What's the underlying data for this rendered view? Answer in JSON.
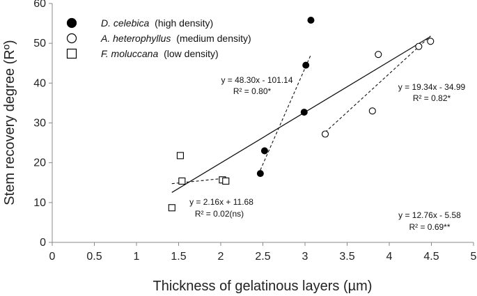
{
  "chart_data": {
    "type": "scatter",
    "xlabel": "Thickness of gelatinous layers (µm)",
    "ylabel": "Stem recovery degree (Rº)",
    "xlim": [
      0,
      5
    ],
    "ylim": [
      0,
      60
    ],
    "xticks": [
      "0",
      "0.5",
      "1",
      "1.5",
      "2",
      "2.5",
      "3",
      "3.5",
      "4",
      "4.5",
      "5"
    ],
    "yticks": [
      "0",
      "10",
      "20",
      "30",
      "40",
      "50",
      "60"
    ],
    "series": [
      {
        "name": "D. celebica",
        "qualifier": "(high density)",
        "marker": "filled-circle",
        "points": [
          [
            2.47,
            17.3
          ],
          [
            2.52,
            23.0
          ],
          [
            2.99,
            32.7
          ],
          [
            3.01,
            44.5
          ],
          [
            3.07,
            55.8
          ]
        ],
        "fit": {
          "slope": 48.3,
          "intercept": -101.14,
          "x_range": [
            2.47,
            3.07
          ]
        },
        "equation": "y = 48.30x - 101.14",
        "r2": "R² = 0.80*"
      },
      {
        "name": "A. heterophyllus",
        "qualifier": "(medium density)",
        "marker": "open-circle",
        "points": [
          [
            3.24,
            27.2
          ],
          [
            3.8,
            33.0
          ],
          [
            3.87,
            47.2
          ],
          [
            4.35,
            49.2
          ],
          [
            4.49,
            50.5
          ]
        ],
        "fit": {
          "slope": 19.34,
          "intercept": -34.99,
          "x_range": [
            3.24,
            4.49
          ]
        },
        "equation": "y = 19.34x - 34.99",
        "r2": "R² = 0.82*"
      },
      {
        "name": "F. moluccana",
        "qualifier": "(low density)",
        "marker": "open-square",
        "points": [
          [
            1.42,
            8.7
          ],
          [
            1.52,
            21.8
          ],
          [
            1.54,
            15.4
          ],
          [
            2.02,
            15.7
          ],
          [
            2.06,
            15.4
          ]
        ],
        "fit": {
          "slope": 2.16,
          "intercept": 11.68,
          "x_range": [
            1.42,
            2.06
          ]
        },
        "equation": "y = 2.16x + 11.68",
        "r2": "R² = 0.02(ns)"
      }
    ],
    "overall_fit": {
      "slope": 12.76,
      "intercept": -5.58,
      "x_range": [
        1.42,
        4.49
      ],
      "equation": "y = 12.76x - 5.58",
      "r2": "R² = 0.69**"
    }
  }
}
